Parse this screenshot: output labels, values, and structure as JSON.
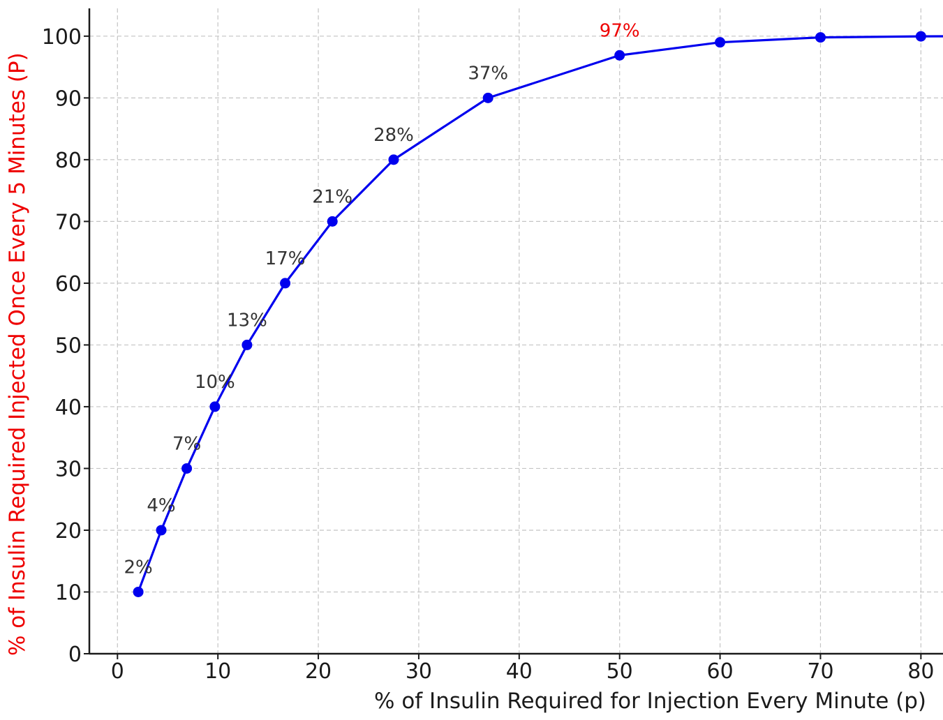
{
  "chart_data": {
    "type": "line",
    "title": "",
    "xlabel": "% of Insulin Required for Injection Every Minute (p)",
    "ylabel": "% of Insulin Required Injected Once Every 5 Minutes (P)",
    "xlim": [
      -2.8,
      82.2
    ],
    "ylim": [
      0,
      104.5
    ],
    "x_ticks": [
      0,
      10,
      20,
      30,
      40,
      50,
      60,
      70,
      80
    ],
    "y_ticks": [
      0,
      10,
      20,
      30,
      40,
      50,
      60,
      70,
      80,
      90,
      100
    ],
    "grid": true,
    "series": [
      {
        "color": "#0000ee",
        "x": [
          2.07,
          4.36,
          6.9,
          9.7,
          12.9,
          16.7,
          21.4,
          27.5,
          36.9,
          50,
          60,
          70,
          80,
          85
        ],
        "y": [
          10,
          20,
          30,
          40,
          50,
          60,
          70,
          80,
          90,
          96.9,
          99.0,
          99.8,
          99.97,
          100
        ]
      }
    ],
    "annotations": [
      {
        "text": "2%",
        "x": 2.07,
        "y": 10,
        "color": "#333333"
      },
      {
        "text": "4%",
        "x": 4.36,
        "y": 20,
        "color": "#333333"
      },
      {
        "text": "7%",
        "x": 6.9,
        "y": 30,
        "color": "#333333"
      },
      {
        "text": "10%",
        "x": 9.7,
        "y": 40,
        "color": "#333333"
      },
      {
        "text": "13%",
        "x": 12.9,
        "y": 50,
        "color": "#333333"
      },
      {
        "text": "17%",
        "x": 16.7,
        "y": 60,
        "color": "#333333"
      },
      {
        "text": "21%",
        "x": 21.4,
        "y": 70,
        "color": "#333333"
      },
      {
        "text": "28%",
        "x": 27.5,
        "y": 80,
        "color": "#333333"
      },
      {
        "text": "37%",
        "x": 36.9,
        "y": 90,
        "color": "#333333"
      },
      {
        "text": "97%",
        "x": 50,
        "y": 96.9,
        "color": "#ee0000"
      }
    ],
    "colors": {
      "line": "#0000ee",
      "ylabel": "#ee0000",
      "xlabel": "#1a1a1a"
    }
  }
}
